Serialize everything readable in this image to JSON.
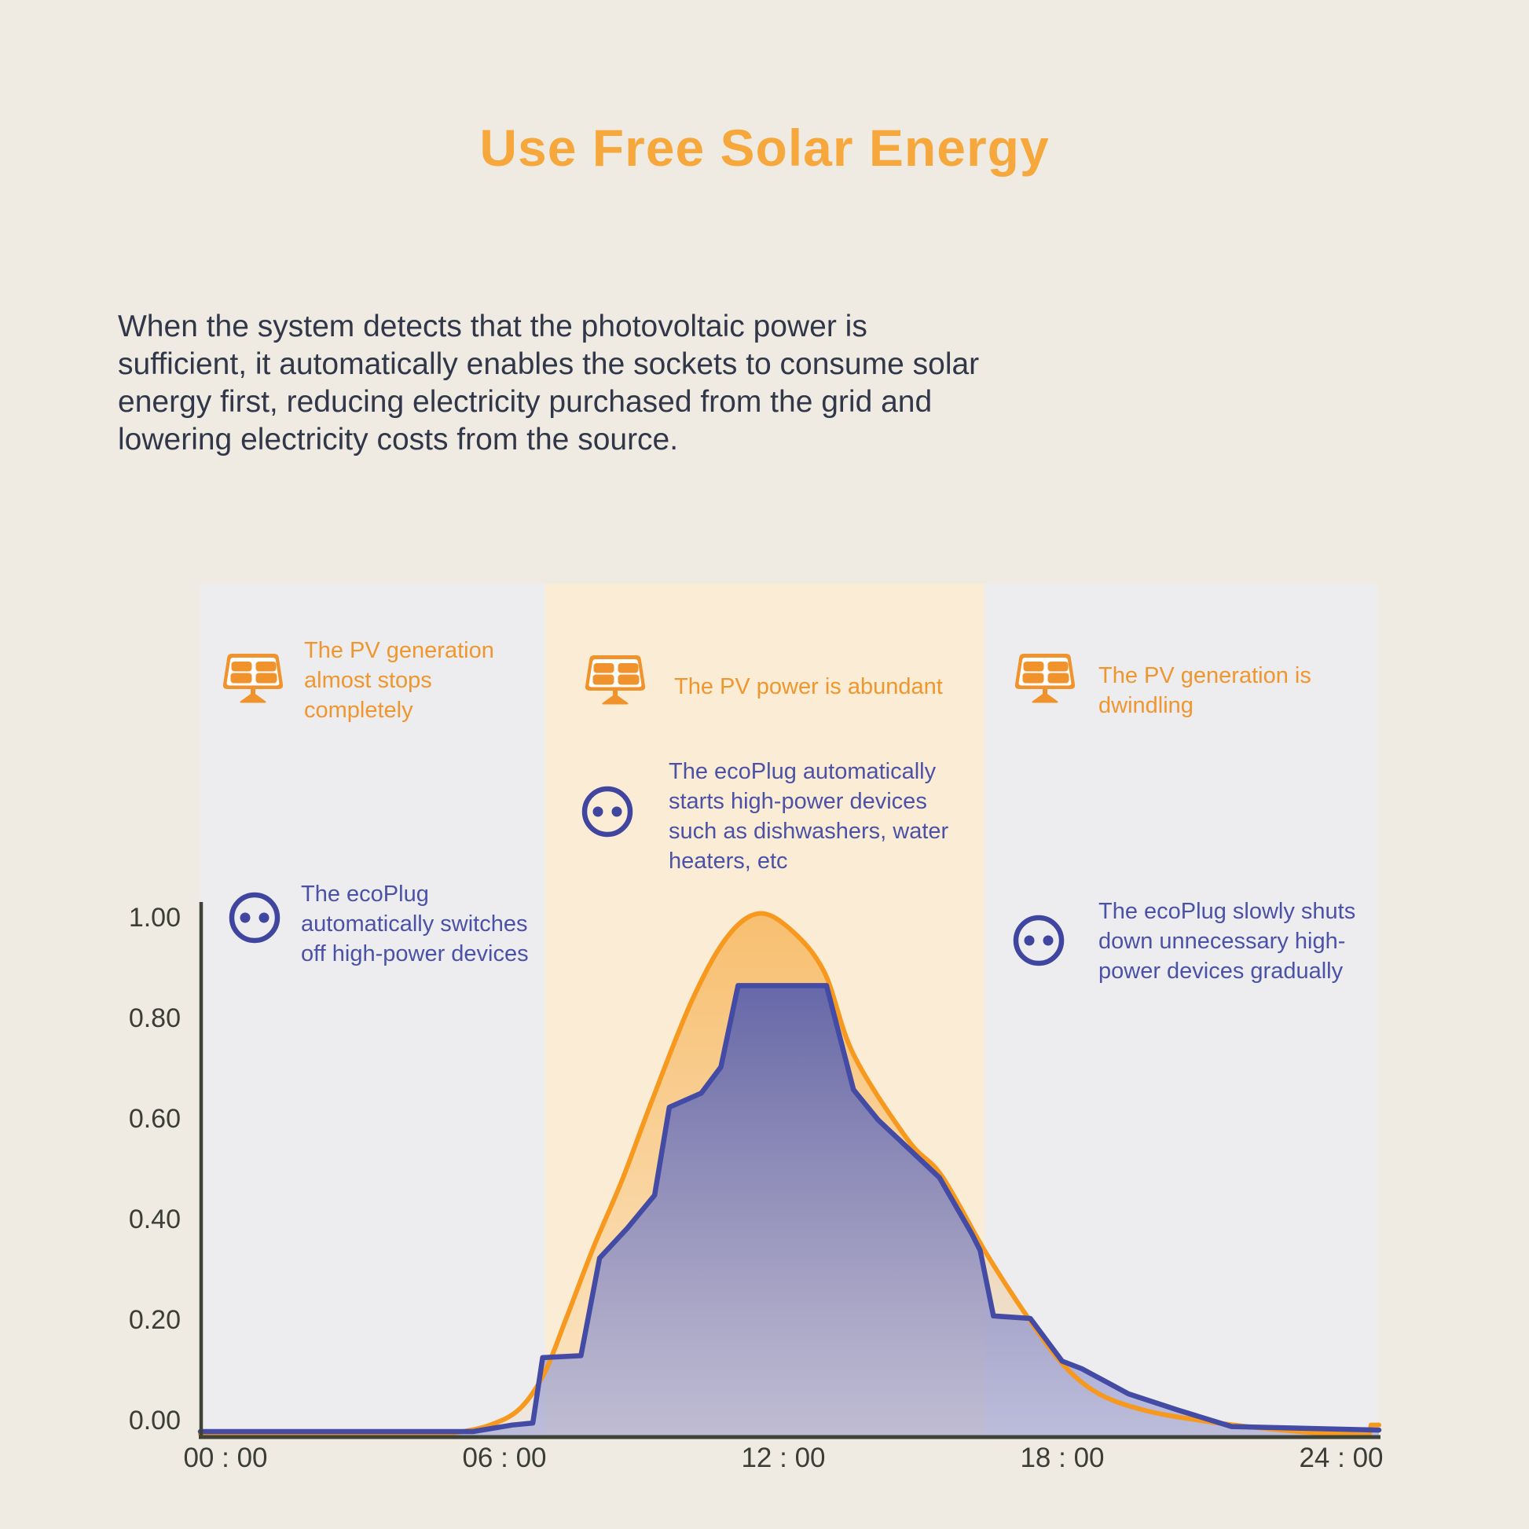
{
  "title": "Use Free Solar Energy",
  "intro_lines": [
    "When the system detects that the photovoltaic power is",
    "sufficient, it automatically enables the sockets to consume solar",
    "energy first, reducing electricity purchased from the grid and",
    "lowering electricity costs from the source."
  ],
  "colors": {
    "page_bg": "#EFEBE3",
    "title_orange": "#F7A83C",
    "body_text": "#313748",
    "panel_gray": "#EDEDEF",
    "panel_cream": "#FBEDD5",
    "pv_line": "#F6991E",
    "consumption_line": "#434BA4",
    "pv_note_text": "#F0962F",
    "plug_note_text": "#4B51A6",
    "solar_icon": "#F0932C",
    "socket_icon": "#4046A0",
    "axis": "#3F4337",
    "tick_text": "#3B3E34"
  },
  "phases": [
    {
      "name": "night",
      "start_hour": 0,
      "end_hour": 7,
      "pv_lines": [
        "The PV generation",
        "almost stops",
        "completely"
      ],
      "plug_lines": [
        "The ecoPlug",
        "automatically switches",
        "off high-power devices"
      ]
    },
    {
      "name": "midday",
      "start_hour": 7,
      "end_hour": 16,
      "pv_lines": [
        "The PV power is abundant"
      ],
      "plug_lines": [
        "The ecoPlug automatically",
        "starts high-power devices",
        "such as dishwashers, water",
        "heaters, etc"
      ]
    },
    {
      "name": "evening",
      "start_hour": 16,
      "end_hour": 24,
      "pv_lines": [
        "The PV generation is",
        "dwindling"
      ],
      "plug_lines": [
        "The ecoPlug slowly shuts",
        "down unnecessary high-",
        "power devices gradually"
      ]
    }
  ],
  "chart_data": {
    "type": "area",
    "title": "",
    "xlabel": "",
    "ylabel": "",
    "x_axis": {
      "range_hours": [
        0,
        24
      ],
      "ticks": [
        "00 : 00",
        "06 : 00",
        "12 : 00",
        "18 : 00",
        "24 : 00"
      ],
      "tick_hours": [
        0,
        6,
        12,
        18,
        24
      ]
    },
    "y_axis": {
      "range": [
        0,
        1
      ],
      "ticks": [
        "1.00",
        "0.80",
        "0.60",
        "0.40",
        "0.20",
        "0.00"
      ],
      "tick_values": [
        1.0,
        0.8,
        0.6,
        0.4,
        0.2,
        0.0
      ]
    },
    "grid": false,
    "legend": "none",
    "series": [
      {
        "name": "pv-generation",
        "style": "smooth",
        "color": "#F6991E",
        "points": [
          [
            0,
            -0.03
          ],
          [
            1.5,
            -0.032
          ],
          [
            3,
            -0.034
          ],
          [
            4.3,
            -0.033
          ],
          [
            5.2,
            -0.027
          ],
          [
            5.9,
            -0.012
          ],
          [
            6.5,
            0.02
          ],
          [
            7.0,
            0.09
          ],
          [
            7.45,
            0.2
          ],
          [
            8.0,
            0.34
          ],
          [
            8.6,
            0.478
          ],
          [
            9.2,
            0.634
          ],
          [
            10.0,
            0.83
          ],
          [
            10.7,
            0.955
          ],
          [
            11.35,
            1.005
          ],
          [
            12.0,
            0.975
          ],
          [
            12.7,
            0.89
          ],
          [
            13.3,
            0.725
          ],
          [
            14.4,
            0.556
          ],
          [
            15.1,
            0.483
          ],
          [
            16.0,
            0.33
          ],
          [
            16.9,
            0.195
          ],
          [
            17.6,
            0.105
          ],
          [
            18.3,
            0.05
          ],
          [
            19.2,
            0.018
          ],
          [
            20.3,
            -0.002
          ],
          [
            21.6,
            -0.018
          ],
          [
            22.8,
            -0.028
          ],
          [
            23.8,
            -0.032
          ]
        ],
        "end_step_points": [
          [
            23.84,
            -0.012
          ],
          [
            24,
            -0.012
          ]
        ]
      },
      {
        "name": "ecoplug-consumption",
        "style": "linear",
        "color": "#434BA4",
        "points": [
          [
            0,
            -0.025
          ],
          [
            5.55,
            -0.025
          ],
          [
            6.35,
            -0.012
          ],
          [
            6.77,
            -0.008
          ],
          [
            6.97,
            0.122
          ],
          [
            7.75,
            0.126
          ],
          [
            8.13,
            0.32
          ],
          [
            8.7,
            0.38
          ],
          [
            9.25,
            0.445
          ],
          [
            9.55,
            0.62
          ],
          [
            10.2,
            0.648
          ],
          [
            10.6,
            0.7
          ],
          [
            10.95,
            0.862
          ],
          [
            12.75,
            0.862
          ],
          [
            13.3,
            0.655
          ],
          [
            13.8,
            0.595
          ],
          [
            15.05,
            0.48
          ],
          [
            15.7,
            0.37
          ],
          [
            15.88,
            0.335
          ],
          [
            16.15,
            0.205
          ],
          [
            16.9,
            0.2
          ],
          [
            17.55,
            0.115
          ],
          [
            17.95,
            0.1
          ],
          [
            18.9,
            0.05
          ],
          [
            19.9,
            0.018
          ],
          [
            21,
            -0.015
          ],
          [
            24,
            -0.022
          ]
        ]
      }
    ]
  }
}
